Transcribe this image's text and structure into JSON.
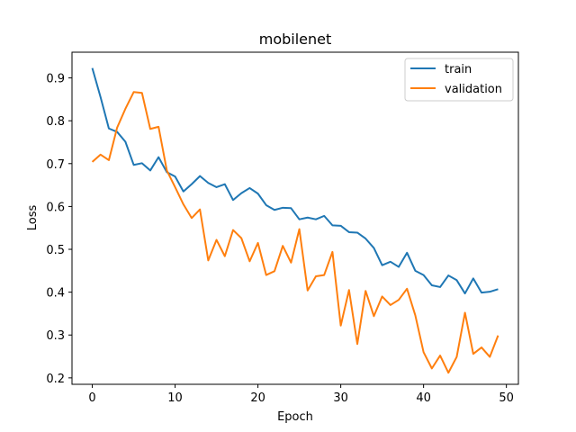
{
  "chart_data": {
    "type": "line",
    "title": "mobilenet",
    "xlabel": "Epoch",
    "ylabel": "Loss",
    "xlim": [
      -2.45,
      51.45
    ],
    "ylim": [
      0.185,
      0.96
    ],
    "xticks": [
      0,
      10,
      20,
      30,
      40,
      50
    ],
    "yticks": [
      0.2,
      0.3,
      0.4,
      0.5,
      0.6,
      0.7,
      0.8,
      0.9
    ],
    "grid": false,
    "legend_position": "top-right",
    "x": [
      0,
      1,
      2,
      3,
      4,
      5,
      6,
      7,
      8,
      9,
      10,
      11,
      12,
      13,
      14,
      15,
      16,
      17,
      18,
      19,
      20,
      21,
      22,
      23,
      24,
      25,
      26,
      27,
      28,
      29,
      30,
      31,
      32,
      33,
      34,
      35,
      36,
      37,
      38,
      39,
      40,
      41,
      42,
      43,
      44,
      45,
      46,
      47,
      48,
      49
    ],
    "series": [
      {
        "name": "train",
        "color": "#1f77b4",
        "values": [
          0.923,
          0.855,
          0.782,
          0.774,
          0.751,
          0.697,
          0.701,
          0.684,
          0.715,
          0.68,
          0.67,
          0.635,
          0.652,
          0.671,
          0.655,
          0.645,
          0.652,
          0.615,
          0.631,
          0.643,
          0.63,
          0.603,
          0.592,
          0.597,
          0.596,
          0.57,
          0.574,
          0.57,
          0.578,
          0.556,
          0.555,
          0.54,
          0.539,
          0.525,
          0.503,
          0.463,
          0.471,
          0.459,
          0.492,
          0.45,
          0.44,
          0.416,
          0.412,
          0.439,
          0.428,
          0.397,
          0.432,
          0.399,
          0.401,
          0.407
        ]
      },
      {
        "name": "validation",
        "color": "#ff7f0e",
        "values": [
          0.704,
          0.721,
          0.708,
          0.784,
          0.828,
          0.867,
          0.865,
          0.781,
          0.786,
          0.684,
          0.645,
          0.605,
          0.573,
          0.593,
          0.474,
          0.522,
          0.484,
          0.545,
          0.526,
          0.472,
          0.515,
          0.44,
          0.449,
          0.508,
          0.469,
          0.547,
          0.404,
          0.437,
          0.44,
          0.494,
          0.322,
          0.405,
          0.279,
          0.403,
          0.344,
          0.39,
          0.37,
          0.382,
          0.408,
          0.346,
          0.26,
          0.222,
          0.252,
          0.212,
          0.249,
          0.352,
          0.256,
          0.271,
          0.249,
          0.299
        ]
      }
    ]
  }
}
